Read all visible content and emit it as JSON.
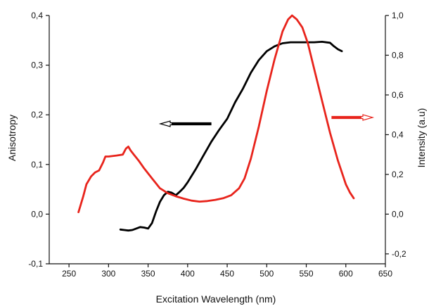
{
  "chart_data": {
    "type": "line",
    "title": "",
    "xlabel": "Excitation Wavelength (nm)",
    "ylabel_left": "Anisotropy",
    "ylabel_right": "Intensity (a.u)",
    "xlim": [
      225,
      650
    ],
    "ylim_left": [
      -0.1,
      0.4
    ],
    "ylim_right": [
      -0.25,
      1.0
    ],
    "x_ticks": [
      "250",
      "300",
      "350",
      "400",
      "450",
      "500",
      "550",
      "600",
      "650"
    ],
    "y_left_ticks": [
      "-0,1",
      "0,0",
      "0,1",
      "0,2",
      "0,3",
      "0,4"
    ],
    "y_right_ticks": [
      "-0,2",
      "0,0",
      "0,2",
      "0,4",
      "0,6",
      "0,8",
      "1,0"
    ],
    "grid": false,
    "series": [
      {
        "axis": "left",
        "color": "#000000",
        "points": [
          [
            315,
            -0.031
          ],
          [
            320,
            -0.032
          ],
          [
            325,
            -0.033
          ],
          [
            330,
            -0.032
          ],
          [
            335,
            -0.029
          ],
          [
            340,
            -0.026
          ],
          [
            345,
            -0.027
          ],
          [
            350,
            -0.029
          ],
          [
            355,
            -0.018
          ],
          [
            360,
            0.005
          ],
          [
            365,
            0.025
          ],
          [
            370,
            0.038
          ],
          [
            375,
            0.045
          ],
          [
            380,
            0.043
          ],
          [
            385,
            0.038
          ],
          [
            390,
            0.045
          ],
          [
            395,
            0.053
          ],
          [
            400,
            0.064
          ],
          [
            410,
            0.09
          ],
          [
            420,
            0.118
          ],
          [
            430,
            0.146
          ],
          [
            440,
            0.17
          ],
          [
            450,
            0.192
          ],
          [
            460,
            0.225
          ],
          [
            470,
            0.253
          ],
          [
            480,
            0.285
          ],
          [
            490,
            0.31
          ],
          [
            500,
            0.328
          ],
          [
            510,
            0.338
          ],
          [
            520,
            0.344
          ],
          [
            530,
            0.346
          ],
          [
            540,
            0.346
          ],
          [
            550,
            0.346
          ],
          [
            560,
            0.346
          ],
          [
            570,
            0.347
          ],
          [
            580,
            0.345
          ],
          [
            585,
            0.338
          ],
          [
            590,
            0.332
          ],
          [
            595,
            0.328
          ]
        ]
      },
      {
        "axis": "right",
        "color": "#e8241c",
        "points": [
          [
            262,
            0.01
          ],
          [
            265,
            0.05
          ],
          [
            268,
            0.09
          ],
          [
            272,
            0.15
          ],
          [
            278,
            0.19
          ],
          [
            283,
            0.21
          ],
          [
            288,
            0.22
          ],
          [
            293,
            0.26
          ],
          [
            296,
            0.29
          ],
          [
            300,
            0.29
          ],
          [
            310,
            0.295
          ],
          [
            318,
            0.3
          ],
          [
            322,
            0.33
          ],
          [
            325,
            0.34
          ],
          [
            328,
            0.32
          ],
          [
            332,
            0.3
          ],
          [
            338,
            0.27
          ],
          [
            345,
            0.23
          ],
          [
            355,
            0.18
          ],
          [
            365,
            0.13
          ],
          [
            375,
            0.105
          ],
          [
            385,
            0.09
          ],
          [
            395,
            0.078
          ],
          [
            405,
            0.068
          ],
          [
            415,
            0.063
          ],
          [
            425,
            0.066
          ],
          [
            435,
            0.072
          ],
          [
            445,
            0.08
          ],
          [
            455,
            0.095
          ],
          [
            465,
            0.13
          ],
          [
            472,
            0.18
          ],
          [
            480,
            0.28
          ],
          [
            490,
            0.44
          ],
          [
            500,
            0.62
          ],
          [
            510,
            0.78
          ],
          [
            520,
            0.92
          ],
          [
            527,
            0.98
          ],
          [
            532,
            1.0
          ],
          [
            538,
            0.98
          ],
          [
            545,
            0.94
          ],
          [
            552,
            0.86
          ],
          [
            560,
            0.73
          ],
          [
            570,
            0.57
          ],
          [
            580,
            0.41
          ],
          [
            590,
            0.27
          ],
          [
            600,
            0.15
          ],
          [
            605,
            0.11
          ],
          [
            610,
            0.08
          ]
        ]
      }
    ],
    "arrows": [
      {
        "direction": "left",
        "color": "#000000",
        "points_to": "left"
      },
      {
        "direction": "right",
        "color": "#e8241c",
        "points_to": "right"
      }
    ]
  }
}
